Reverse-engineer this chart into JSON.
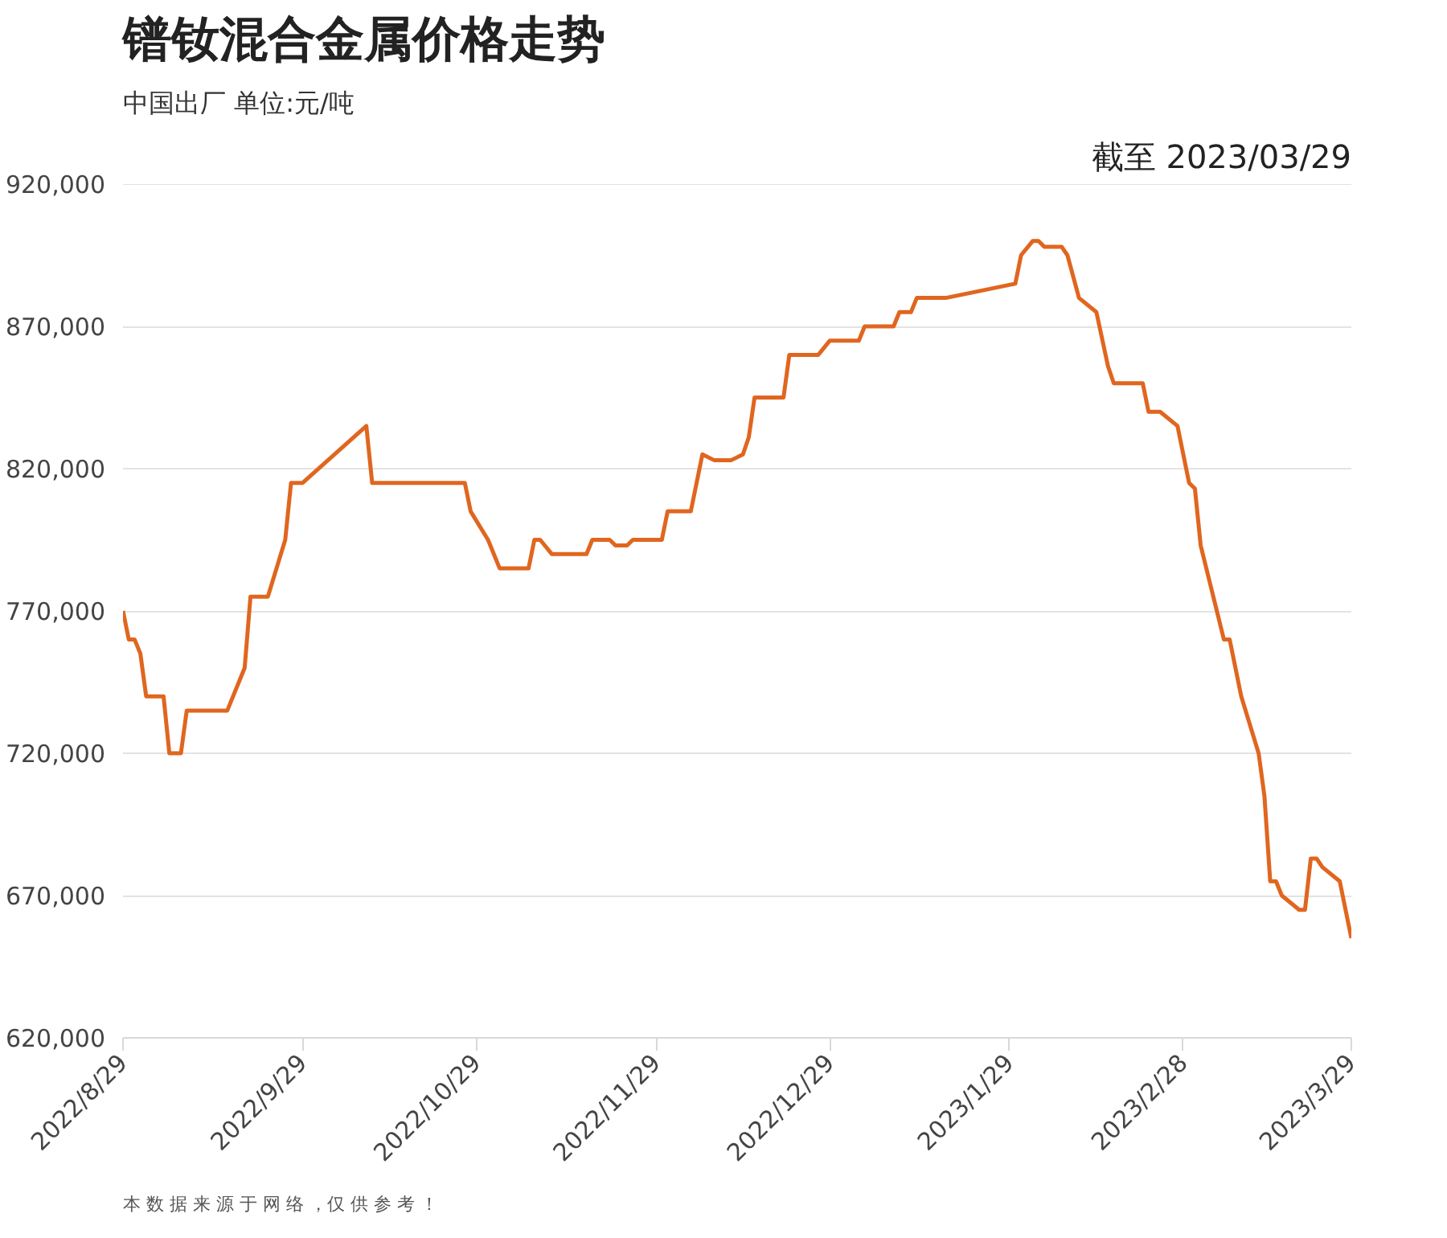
{
  "chart_data": {
    "type": "line",
    "title": "镨钕混合金属价格走势",
    "subtitle": "中国出厂  单位:元/吨",
    "annotations": [
      "截至 2023/03/29",
      "本 数 据 来 源 于 网 络 ，仅 供 参 考 ！"
    ],
    "x": [
      "2022-08-29",
      "2022-08-30",
      "2022-08-31",
      "2022-09-01",
      "2022-09-02",
      "2022-09-05",
      "2022-09-06",
      "2022-09-08",
      "2022-09-09",
      "2022-09-16",
      "2022-09-19",
      "2022-09-20",
      "2022-09-23",
      "2022-09-26",
      "2022-09-27",
      "2022-09-29",
      "2022-10-10",
      "2022-10-11",
      "2022-10-27",
      "2022-10-28",
      "2022-10-31",
      "2022-11-02",
      "2022-11-07",
      "2022-11-08",
      "2022-11-09",
      "2022-11-11",
      "2022-11-17",
      "2022-11-18",
      "2022-11-21",
      "2022-11-22",
      "2022-11-24",
      "2022-11-25",
      "2022-11-30",
      "2022-12-01",
      "2022-12-05",
      "2022-12-07",
      "2022-12-09",
      "2022-12-12",
      "2022-12-14",
      "2022-12-15",
      "2022-12-16",
      "2022-12-21",
      "2022-12-22",
      "2022-12-27",
      "2022-12-29",
      "2023-01-03",
      "2023-01-04",
      "2023-01-09",
      "2023-01-10",
      "2023-01-12",
      "2023-01-13",
      "2023-01-18",
      "2023-01-30",
      "2023-01-31",
      "2023-02-02",
      "2023-02-03",
      "2023-02-04",
      "2023-02-07",
      "2023-02-08",
      "2023-02-10",
      "2023-02-13",
      "2023-02-15",
      "2023-02-16",
      "2023-02-21",
      "2023-02-22",
      "2023-02-24",
      "2023-02-27",
      "2023-03-01",
      "2023-03-02",
      "2023-03-03",
      "2023-03-07",
      "2023-03-08",
      "2023-03-10",
      "2023-03-13",
      "2023-03-14",
      "2023-03-15",
      "2023-03-16",
      "2023-03-17",
      "2023-03-20",
      "2023-03-21",
      "2023-03-22",
      "2023-03-23",
      "2023-03-24",
      "2023-03-27",
      "2023-03-29"
    ],
    "series": [
      {
        "color": "#e0661f",
        "values": [
          770000,
          760000,
          760000,
          755000,
          740000,
          740000,
          720000,
          720000,
          735000,
          735000,
          750000,
          775000,
          775000,
          795000,
          815000,
          815000,
          835000,
          815000,
          815000,
          805000,
          795000,
          785000,
          785000,
          795000,
          795000,
          790000,
          790000,
          795000,
          795000,
          793000,
          793000,
          795000,
          795000,
          805000,
          805000,
          825000,
          823000,
          823000,
          825000,
          831000,
          845000,
          845000,
          860000,
          860000,
          865000,
          865000,
          870000,
          870000,
          875000,
          875000,
          880000,
          880000,
          885000,
          895000,
          900000,
          900000,
          898000,
          898000,
          895000,
          880000,
          875000,
          856000,
          850000,
          850000,
          840000,
          840000,
          835000,
          815000,
          813000,
          793000,
          760000,
          760000,
          740000,
          720000,
          705000,
          675000,
          675000,
          670000,
          665000,
          665000,
          683000,
          683000,
          680000,
          675000,
          655000
        ]
      }
    ],
    "xlim": [
      "2022-08-29",
      "2023-03-29"
    ],
    "xticks": [
      {
        "value": "2022-08-29",
        "label": "2022/8/29"
      },
      {
        "value": "2022-09-29",
        "label": "2022/9/29"
      },
      {
        "value": "2022-10-29",
        "label": "2022/10/29"
      },
      {
        "value": "2022-11-29",
        "label": "2022/11/29"
      },
      {
        "value": "2022-12-29",
        "label": "2022/12/29"
      },
      {
        "value": "2023-01-29",
        "label": "2023/1/29"
      },
      {
        "value": "2023-02-28",
        "label": "2023/2/28"
      },
      {
        "value": "2023-03-29",
        "label": "2023/3/29"
      }
    ],
    "ylim": [
      620000,
      920000
    ],
    "yticks": [
      {
        "value": 620000,
        "label": "620,000"
      },
      {
        "value": 670000,
        "label": "670,000"
      },
      {
        "value": 720000,
        "label": "720,000"
      },
      {
        "value": 770000,
        "label": "770,000"
      },
      {
        "value": 820000,
        "label": "820,000"
      },
      {
        "value": 870000,
        "label": "870,000"
      },
      {
        "value": 920000,
        "label": "920,000"
      }
    ],
    "grid": "y",
    "marker": "none",
    "line_style": "solid"
  }
}
